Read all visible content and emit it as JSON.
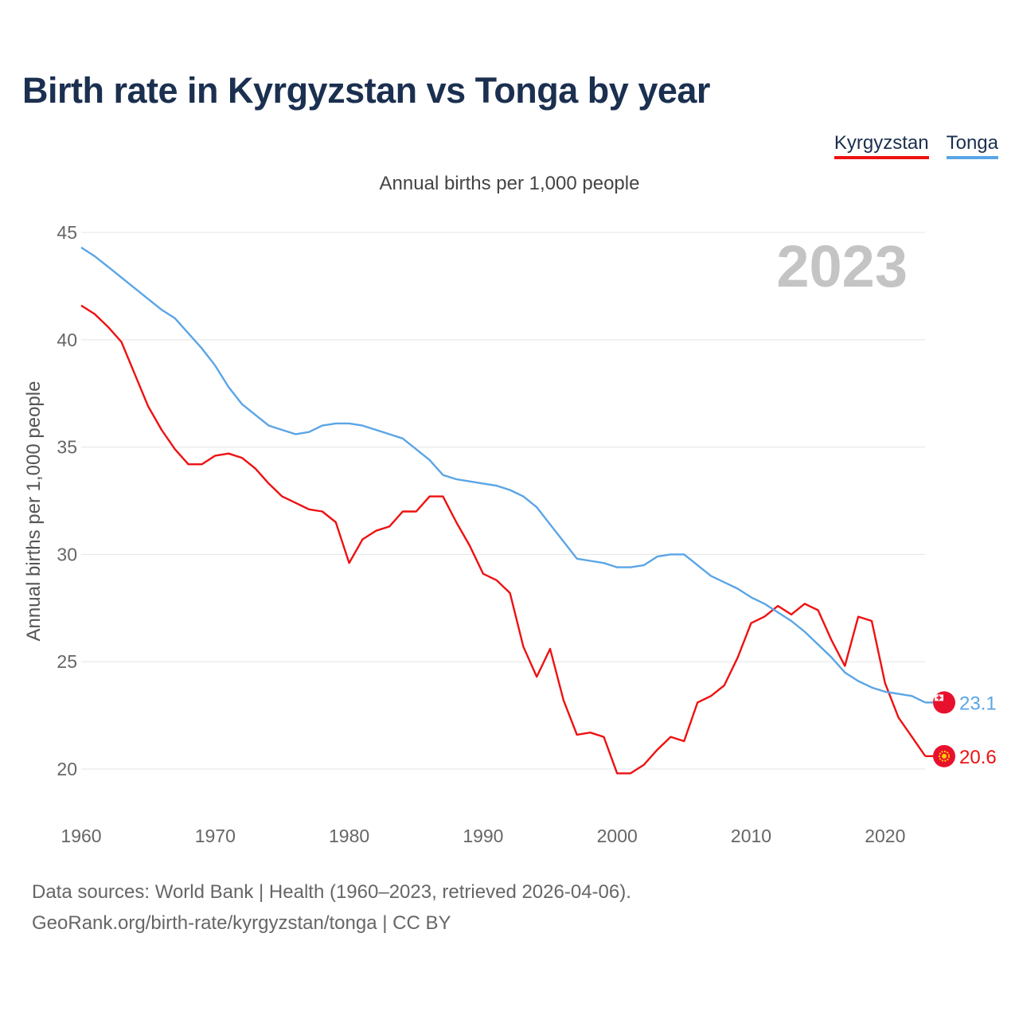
{
  "title": "Birth rate in Kyrgyzstan vs Tonga by year",
  "legend": {
    "kyrgyzstan": "Kyrgyzstan",
    "tonga": "Tonga"
  },
  "colors": {
    "kyrgyzstan": "#ee1111",
    "tonga": "#5aa5e6",
    "title": "#1b3050",
    "year_watermark": "#c4c4c4"
  },
  "year_label": "2023",
  "footer": {
    "line1": "Data sources: World Bank | Health (1960–2023, retrieved 2026-04-06).",
    "line2": "GeoRank.org/birth-rate/kyrgyzstan/tonga | CC BY"
  },
  "chart_data": {
    "type": "line",
    "title": "Annual births per 1,000 people",
    "xlabel": "",
    "ylabel": "Annual births per 1,000 people",
    "xlim": [
      1960,
      2023
    ],
    "ylim": [
      18.5,
      46
    ],
    "y_ticks": [
      20,
      25,
      30,
      35,
      40,
      45
    ],
    "x_ticks": [
      1960,
      1970,
      1980,
      1990,
      2000,
      2010,
      2020
    ],
    "grid": true,
    "x": [
      1960,
      1961,
      1962,
      1963,
      1964,
      1965,
      1966,
      1967,
      1968,
      1969,
      1970,
      1971,
      1972,
      1973,
      1974,
      1975,
      1976,
      1977,
      1978,
      1979,
      1980,
      1981,
      1982,
      1983,
      1984,
      1985,
      1986,
      1987,
      1988,
      1989,
      1990,
      1991,
      1992,
      1993,
      1994,
      1995,
      1996,
      1997,
      1998,
      1999,
      2000,
      2001,
      2002,
      2003,
      2004,
      2005,
      2006,
      2007,
      2008,
      2009,
      2010,
      2011,
      2012,
      2013,
      2014,
      2015,
      2016,
      2017,
      2018,
      2019,
      2020,
      2021,
      2022,
      2023
    ],
    "series": [
      {
        "name": "Kyrgyzstan",
        "end_label": "20.6",
        "values": [
          41.6,
          41.2,
          40.6,
          39.9,
          38.4,
          36.9,
          35.8,
          34.9,
          34.2,
          34.2,
          34.6,
          34.7,
          34.5,
          34.0,
          33.3,
          32.7,
          32.4,
          32.1,
          32.0,
          31.5,
          29.6,
          30.7,
          31.1,
          31.3,
          32.0,
          32.0,
          32.7,
          32.7,
          31.5,
          30.4,
          29.1,
          28.8,
          28.2,
          25.7,
          24.3,
          25.6,
          23.2,
          21.6,
          21.7,
          21.5,
          19.8,
          19.8,
          20.2,
          20.9,
          21.5,
          21.3,
          23.1,
          23.4,
          23.9,
          25.2,
          26.8,
          27.1,
          27.6,
          27.2,
          27.7,
          27.4,
          26.0,
          24.8,
          27.1,
          26.9,
          24.0,
          22.4,
          21.5,
          20.6
        ]
      },
      {
        "name": "Tonga",
        "end_label": "23.1",
        "values": [
          44.3,
          43.9,
          43.4,
          42.9,
          42.4,
          41.9,
          41.4,
          41.0,
          40.3,
          39.6,
          38.8,
          37.8,
          37.0,
          36.5,
          36.0,
          35.8,
          35.6,
          35.7,
          36.0,
          36.1,
          36.1,
          36.0,
          35.8,
          35.6,
          35.4,
          34.9,
          34.4,
          33.7,
          33.5,
          33.4,
          33.3,
          33.2,
          33.0,
          32.7,
          32.2,
          31.4,
          30.6,
          29.8,
          29.7,
          29.6,
          29.4,
          29.4,
          29.5,
          29.9,
          30.0,
          30.0,
          29.5,
          29.0,
          28.7,
          28.4,
          28.0,
          27.7,
          27.3,
          26.9,
          26.4,
          25.8,
          25.2,
          24.5,
          24.1,
          23.8,
          23.6,
          23.5,
          23.4,
          23.1
        ]
      }
    ]
  }
}
